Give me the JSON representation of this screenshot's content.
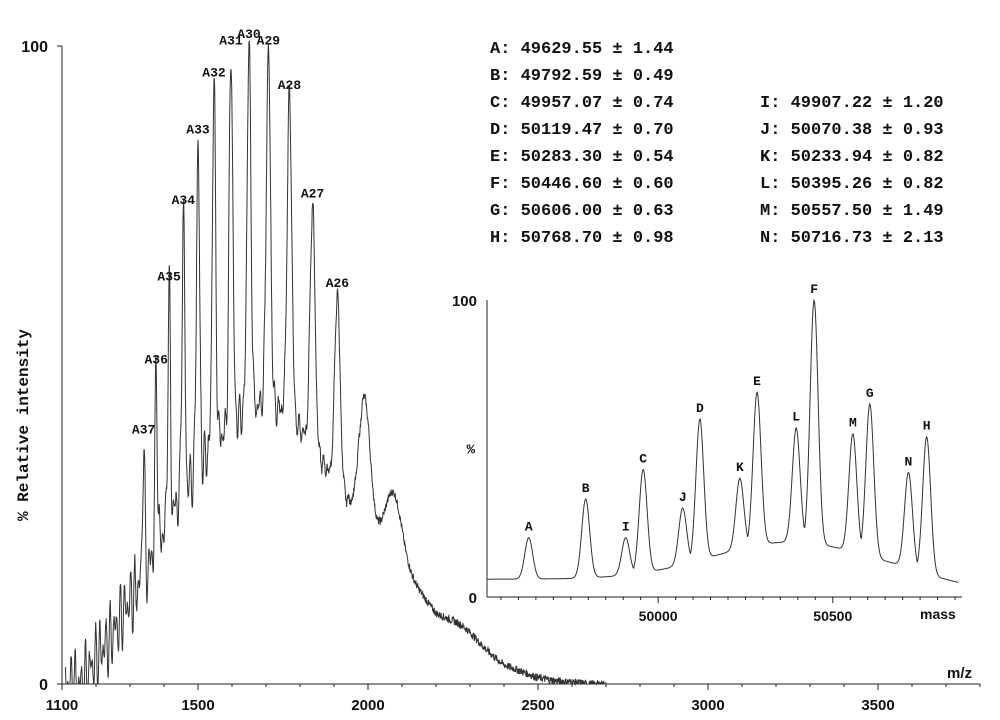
{
  "chart_data": [
    {
      "type": "line",
      "xlabel": "m/z",
      "ylabel": "% Relative intensity",
      "xlim": [
        1100,
        3800
      ],
      "ylim": [
        0,
        100
      ],
      "x_ticks": [
        1100,
        1500,
        2000,
        2500,
        3000,
        3500
      ],
      "y_ticks": [
        0,
        100
      ],
      "envelope": {
        "x": [
          1160,
          1200,
          1250,
          1300,
          1350,
          1400,
          1450,
          1500,
          1550,
          1600,
          1650,
          1700,
          1750,
          1800,
          1850,
          1900,
          1950,
          2000,
          2050,
          2100,
          2150,
          2200,
          2250,
          2300,
          2350,
          2400,
          2450,
          2500,
          2550,
          2600,
          2650
        ],
        "values": [
          0,
          4,
          8,
          13,
          18,
          24,
          30,
          34,
          38,
          41,
          43,
          44,
          43,
          40,
          36,
          32,
          28,
          25,
          22,
          19,
          15,
          11,
          9,
          7,
          5,
          3,
          2,
          1,
          0.5,
          0.3,
          0
        ]
      },
      "peaks": [
        {
          "label": "A37",
          "x": 1340,
          "y": 38
        },
        {
          "label": "A36",
          "x": 1377,
          "y": 49
        },
        {
          "label": "A35",
          "x": 1415,
          "y": 62
        },
        {
          "label": "A34",
          "x": 1457,
          "y": 74
        },
        {
          "label": "A33",
          "x": 1500,
          "y": 85
        },
        {
          "label": "A32",
          "x": 1547,
          "y": 94
        },
        {
          "label": "A31",
          "x": 1597,
          "y": 99
        },
        {
          "label": "A30",
          "x": 1650,
          "y": 100
        },
        {
          "label": "A29",
          "x": 1707,
          "y": 99
        },
        {
          "label": "A28",
          "x": 1769,
          "y": 92
        },
        {
          "label": "A27",
          "x": 1837,
          "y": 75
        },
        {
          "label": "A26",
          "x": 1910,
          "y": 61
        }
      ],
      "broad_peaks": [
        {
          "x": 1990,
          "y": 45
        },
        {
          "x": 2075,
          "y": 30
        },
        {
          "x": 2160,
          "y": 14
        },
        {
          "x": 2280,
          "y": 9
        }
      ]
    },
    {
      "type": "line",
      "xlabel": "mass",
      "ylabel": "%",
      "xlim": [
        49510,
        50870
      ],
      "ylim": [
        0,
        100
      ],
      "x_ticks": [
        50000,
        50500
      ],
      "y_ticks": [
        0,
        100
      ],
      "peaks": [
        {
          "label": "A",
          "x": 49629.55,
          "y": 20
        },
        {
          "label": "B",
          "x": 49792.59,
          "y": 33
        },
        {
          "label": "I",
          "x": 49907.22,
          "y": 20
        },
        {
          "label": "C",
          "x": 49957.07,
          "y": 43
        },
        {
          "label": "J",
          "x": 50070.38,
          "y": 30
        },
        {
          "label": "D",
          "x": 50119.47,
          "y": 60
        },
        {
          "label": "K",
          "x": 50233.94,
          "y": 40
        },
        {
          "label": "E",
          "x": 50283.3,
          "y": 69
        },
        {
          "label": "L",
          "x": 50395.26,
          "y": 57
        },
        {
          "label": "F",
          "x": 50446.6,
          "y": 100
        },
        {
          "label": "M",
          "x": 50557.5,
          "y": 55
        },
        {
          "label": "G",
          "x": 50606.0,
          "y": 65
        },
        {
          "label": "N",
          "x": 50716.73,
          "y": 42
        },
        {
          "label": "H",
          "x": 50768.7,
          "y": 54
        }
      ]
    }
  ],
  "mass_table": {
    "left": [
      "A: 49629.55 ± 1.44",
      "B: 49792.59 ± 0.49",
      "C: 49957.07 ± 0.74",
      "D: 50119.47 ± 0.70",
      "E: 50283.30 ± 0.54",
      "F: 50446.60 ± 0.60",
      "G: 50606.00 ± 0.63",
      "H: 50768.70 ± 0.98"
    ],
    "right": [
      "I: 49907.22 ± 1.20",
      "J: 50070.38 ± 0.93",
      "K: 50233.94 ± 0.82",
      "L: 50395.26 ± 0.82",
      "M: 50557.50 ± 1.49",
      "N: 50716.73 ± 2.13"
    ]
  }
}
